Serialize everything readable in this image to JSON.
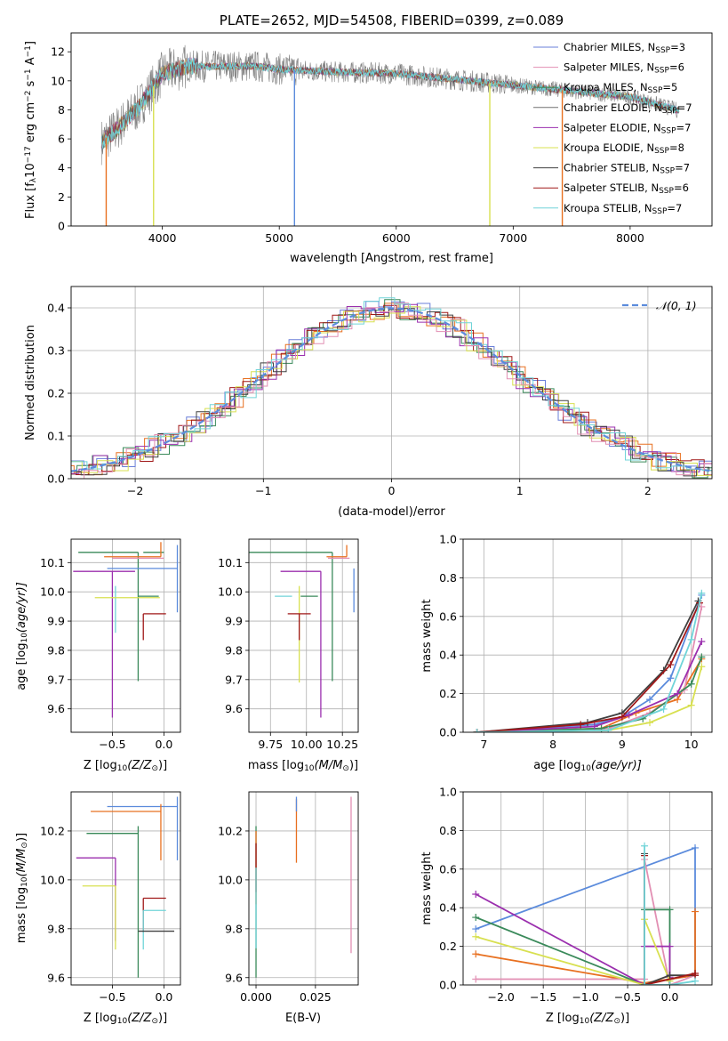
{
  "chart_data": [
    {
      "id": "spectrum",
      "type": "line",
      "title": "PLATE=2652, MJD=54508, FIBERID=0399, z=0.089",
      "xlabel": "wavelength [Angstrom, rest frame]",
      "ylabel": "Flux [f",
      "ylabel_parts": [
        "Flux [f",
        "λ",
        "10",
        "−17",
        " erg cm",
        "−2",
        " s",
        "−1",
        " A",
        "−1",
        "]"
      ],
      "xlim": [
        3220,
        8700
      ],
      "ylim": [
        0,
        13.3
      ],
      "xticks": [
        4000,
        5000,
        6000,
        7000,
        8000
      ],
      "yticks": [
        0,
        2,
        4,
        6,
        8,
        10,
        12
      ],
      "grid": false,
      "legend_position": "right",
      "series": [
        {
          "name": "Chabrier MILES, N",
          "nssp": "3",
          "color": "#6a7fd9"
        },
        {
          "name": "Salpeter MILES, N",
          "nssp": "6",
          "color": "#e28fb3"
        },
        {
          "name": "Kroupa MILES, N",
          "nssp": "5",
          "color": "#3a8a5a"
        },
        {
          "name": "Chabrier ELODIE, N",
          "nssp": "7",
          "color": "#707070"
        },
        {
          "name": "Salpeter ELODIE, N",
          "nssp": "7",
          "color": "#9b2fae"
        },
        {
          "name": "Kroupa ELODIE, N",
          "nssp": "8",
          "color": "#d8e050"
        },
        {
          "name": "Chabrier STELIB, N",
          "nssp": "7",
          "color": "#404040"
        },
        {
          "name": "Salpeter STELIB, N",
          "nssp": "6",
          "color": "#a01818"
        },
        {
          "name": "Kroupa STELIB, N",
          "nssp": "7",
          "color": "#70d4d8"
        }
      ],
      "continuum": {
        "x": [
          3480,
          3600,
          3800,
          4000,
          4200,
          4500,
          4800,
          5000,
          5500,
          6000,
          6500,
          7000,
          7500,
          8000,
          8400
        ],
        "y": [
          5.8,
          6.6,
          8.2,
          10.5,
          11.0,
          11.0,
          11.0,
          10.8,
          10.6,
          10.5,
          10.1,
          9.7,
          9.3,
          8.9,
          8.0
        ]
      }
    },
    {
      "id": "residuals",
      "type": "line",
      "xlabel": "(data-model)/error",
      "ylabel": "Normed distribution",
      "xlim": [
        -2.5,
        2.5
      ],
      "ylim": [
        0,
        0.45
      ],
      "xticks": [
        -2,
        -1,
        0,
        1,
        2
      ],
      "xticklabels": [
        "−2",
        "−1",
        "0",
        "1",
        "2"
      ],
      "yticks": [
        0.0,
        0.1,
        0.2,
        0.3,
        0.4
      ],
      "yticklabels": [
        "0.0",
        "0.1",
        "0.2",
        "0.3",
        "0.4"
      ],
      "grid": true,
      "legend_label": "𝒩(0, 1)",
      "legend_position": "top-right",
      "gaussian_color": "#5b8bdc"
    },
    {
      "id": "age-vs-Z",
      "type": "scatter",
      "xlabel": "Z [log",
      "xlabel_parts": [
        "Z [log",
        "10",
        "(Z/Z",
        "⊙",
        ")]"
      ],
      "ylabel_parts": [
        "age  [log",
        "10",
        "(age/yr)]"
      ],
      "xlim": [
        -0.9,
        0.16
      ],
      "ylim": [
        9.52,
        10.18
      ],
      "xticks": [
        -0.5,
        0.0
      ],
      "xticklabels": [
        "−0.5",
        "0.0"
      ],
      "yticks": [
        9.6,
        9.7,
        9.8,
        9.9,
        10.0,
        10.1
      ],
      "yticklabels": [
        "9.6",
        "9.7",
        "9.8",
        "9.9",
        "10.0",
        "10.1"
      ],
      "grid": true,
      "points": [
        {
          "x": -0.25,
          "y": 10.135,
          "xerr": [
            0.58,
            0.0
          ],
          "yerr": [
            0.44,
            0.0
          ],
          "c": "#3a8a5a"
        },
        {
          "x": -0.2,
          "y": 10.135,
          "xerr": [
            0.0,
            0.2
          ],
          "yerr": [
            0.0,
            0.0
          ],
          "c": "#3a8a5a"
        },
        {
          "x": -0.03,
          "y": 10.12,
          "xerr": [
            0.55,
            0.0
          ],
          "yerr": [
            0.0,
            0.05
          ],
          "c": "#e87020"
        },
        {
          "x": 0.0,
          "y": 10.115,
          "xerr": [
            0.5,
            0.0
          ],
          "yerr": [
            0.0,
            0.0
          ],
          "c": "#e28fb3"
        },
        {
          "x": 0.13,
          "y": 10.08,
          "xerr": [
            0.68,
            0.0
          ],
          "yerr": [
            0.15,
            0.08
          ],
          "c": "#5b8bdc"
        },
        {
          "x": -0.5,
          "y": 10.07,
          "xerr": [
            0.38,
            0.22
          ],
          "yerr": [
            0.5,
            0.0
          ],
          "c": "#9b2fae"
        },
        {
          "x": -0.47,
          "y": 10.02,
          "xerr": [
            0.0,
            0.0
          ],
          "yerr": [
            0.16,
            0.0
          ],
          "c": "#70d4d8"
        },
        {
          "x": -0.05,
          "y": 9.985,
          "xerr": [
            0.2,
            0.0
          ],
          "yerr": [
            0.0,
            0.0
          ],
          "c": "#3a8a5a"
        },
        {
          "x": -0.42,
          "y": 9.98,
          "xerr": [
            0.25,
            0.38
          ],
          "yerr": [
            0.0,
            0.0
          ],
          "c": "#d8e050"
        },
        {
          "x": -0.2,
          "y": 9.925,
          "xerr": [
            0.0,
            0.22
          ],
          "yerr": [
            0.09,
            0.0
          ],
          "c": "#a01818"
        }
      ]
    },
    {
      "id": "age-vs-mass",
      "type": "scatter",
      "xlabel_parts": [
        "mass [log",
        "10",
        "(M/M",
        "⊙",
        ")]"
      ],
      "xlim": [
        9.6,
        10.36
      ],
      "ylim": [
        9.52,
        10.18
      ],
      "xticks": [
        9.75,
        10.0,
        10.25
      ],
      "xticklabels": [
        "9.75",
        "10.00",
        "10.25"
      ],
      "yticks": [
        9.6,
        9.7,
        9.8,
        9.9,
        10.0,
        10.1
      ],
      "yticklabels": [
        "9.6",
        "9.7",
        "9.8",
        "9.9",
        "10.0",
        "10.1"
      ],
      "grid": true,
      "points": [
        {
          "x": 10.18,
          "y": 10.135,
          "xerr": [
            0.58,
            0.0
          ],
          "yerr": [
            0.44,
            0.0
          ],
          "c": "#3a8a5a"
        },
        {
          "x": 10.28,
          "y": 10.12,
          "xerr": [
            0.14,
            0.0
          ],
          "yerr": [
            0.0,
            0.04
          ],
          "c": "#e87020"
        },
        {
          "x": 10.3,
          "y": 10.115,
          "xerr": [
            0.15,
            0.0
          ],
          "yerr": [
            0.0,
            0.0
          ],
          "c": "#e28fb3"
        },
        {
          "x": 10.33,
          "y": 10.08,
          "xerr": [
            0.0,
            0.0
          ],
          "yerr": [
            0.15,
            0.0
          ],
          "c": "#5b8bdc"
        },
        {
          "x": 10.1,
          "y": 10.07,
          "xerr": [
            0.28,
            0.0
          ],
          "yerr": [
            0.5,
            0.0
          ],
          "c": "#9b2fae"
        },
        {
          "x": 9.95,
          "y": 10.02,
          "xerr": [
            0.0,
            0.0
          ],
          "yerr": [
            0.33,
            0.0
          ],
          "c": "#d8e050"
        },
        {
          "x": 9.9,
          "y": 9.985,
          "xerr": [
            0.12,
            0.0
          ],
          "yerr": [
            0.0,
            0.0
          ],
          "c": "#70d4d8"
        },
        {
          "x": 10.08,
          "y": 9.985,
          "xerr": [
            0.12,
            0.0
          ],
          "yerr": [
            0.0,
            0.0
          ],
          "c": "#3a8a5a"
        },
        {
          "x": 9.95,
          "y": 9.925,
          "xerr": [
            0.08,
            0.08
          ],
          "yerr": [
            0.09,
            0.0
          ],
          "c": "#a01818"
        }
      ]
    },
    {
      "id": "weight-vs-age",
      "type": "line",
      "xlabel_parts": [
        "age  [log",
        "10",
        "(age/yr)]"
      ],
      "ylabel": "mass weight",
      "xlim": [
        6.7,
        10.3
      ],
      "ylim": [
        0,
        1.0
      ],
      "xticks": [
        7,
        8,
        9,
        10
      ],
      "yticks": [
        0.0,
        0.2,
        0.4,
        0.6,
        0.8,
        1.0
      ],
      "yticklabels": [
        "0.0",
        "0.2",
        "0.4",
        "0.6",
        "0.8",
        "1.0"
      ],
      "grid": true,
      "series": [
        {
          "color": "#5b8bdc",
          "x": [
            6.9,
            8.6,
            9.0,
            9.4,
            9.7,
            10.15
          ],
          "y": [
            0.0,
            0.04,
            0.08,
            0.17,
            0.28,
            0.71
          ]
        },
        {
          "color": "#e87020",
          "x": [
            6.9,
            8.7,
            9.2,
            9.8,
            10.15
          ],
          "y": [
            0.0,
            0.02,
            0.1,
            0.17,
            0.38
          ]
        },
        {
          "color": "#e28fb3",
          "x": [
            6.9,
            8.8,
            9.4,
            9.9,
            10.15
          ],
          "y": [
            0.0,
            0.02,
            0.1,
            0.22,
            0.65
          ]
        },
        {
          "color": "#3a8a5a",
          "x": [
            6.9,
            8.7,
            9.3,
            10.0,
            10.15
          ],
          "y": [
            0.0,
            0.02,
            0.07,
            0.25,
            0.39
          ]
        },
        {
          "color": "#9b2fae",
          "x": [
            6.9,
            8.6,
            9.1,
            9.8,
            10.15
          ],
          "y": [
            0.0,
            0.03,
            0.09,
            0.2,
            0.47
          ]
        },
        {
          "color": "#d8e050",
          "x": [
            6.9,
            8.8,
            9.4,
            10.0,
            10.15
          ],
          "y": [
            0.0,
            0.01,
            0.05,
            0.14,
            0.34
          ]
        },
        {
          "color": "#404040",
          "x": [
            6.9,
            8.5,
            9.0,
            9.6,
            10.1
          ],
          "y": [
            0.0,
            0.05,
            0.1,
            0.32,
            0.68
          ]
        },
        {
          "color": "#a01818",
          "x": [
            6.9,
            8.4,
            9.0,
            9.7,
            10.12
          ],
          "y": [
            0.0,
            0.04,
            0.08,
            0.35,
            0.67
          ]
        },
        {
          "color": "#70d4d8",
          "x": [
            6.9,
            8.8,
            9.6,
            10.0,
            10.15
          ],
          "y": [
            0.0,
            0.01,
            0.12,
            0.48,
            0.72
          ]
        }
      ]
    },
    {
      "id": "mass-vs-Z",
      "type": "scatter",
      "xlabel_parts": [
        "Z [log",
        "10",
        "(Z/Z",
        "⊙",
        ")]"
      ],
      "ylabel_parts": [
        "mass [log",
        "10",
        "(M/M",
        "⊙",
        ")]"
      ],
      "xlim": [
        -0.9,
        0.16
      ],
      "ylim": [
        9.57,
        10.36
      ],
      "xticks": [
        -0.5,
        0.0
      ],
      "xticklabels": [
        "−0.5",
        "0.0"
      ],
      "yticks": [
        9.6,
        9.8,
        10.0,
        10.2
      ],
      "yticklabels": [
        "9.6",
        "9.8",
        "10.0",
        "10.2"
      ],
      "grid": true,
      "points": [
        {
          "x": 0.13,
          "y": 10.3,
          "xerr": [
            0.68,
            0.0
          ],
          "yerr": [
            0.22,
            0.04
          ],
          "c": "#5b8bdc"
        },
        {
          "x": -0.03,
          "y": 10.28,
          "xerr": [
            0.68,
            0.0
          ],
          "yerr": [
            0.2,
            0.03
          ],
          "c": "#e87020"
        },
        {
          "x": -0.25,
          "y": 10.19,
          "xerr": [
            0.5,
            0.0
          ],
          "yerr": [
            0.59,
            0.03
          ],
          "c": "#3a8a5a"
        },
        {
          "x": -0.47,
          "y": 10.09,
          "xerr": [
            0.38,
            0.0
          ],
          "yerr": [
            0.34,
            0.0
          ],
          "c": "#9b2fae"
        },
        {
          "x": -0.47,
          "y": 9.975,
          "xerr": [
            0.32,
            0.0
          ],
          "yerr": [
            0.26,
            0.0
          ],
          "c": "#d8e050"
        },
        {
          "x": -0.2,
          "y": 9.925,
          "xerr": [
            0.0,
            0.22
          ],
          "yerr": [
            0.14,
            0.0
          ],
          "c": "#a01818"
        },
        {
          "x": -0.2,
          "y": 9.875,
          "xerr": [
            0.0,
            0.22
          ],
          "yerr": [
            0.16,
            0.0
          ],
          "c": "#70d4d8"
        },
        {
          "x": -0.25,
          "y": 9.79,
          "xerr": [
            0.0,
            0.35
          ],
          "yerr": [
            0.0,
            0.0
          ],
          "c": "#404040"
        }
      ]
    },
    {
      "id": "mass-vs-EBV",
      "type": "scatter",
      "xlabel": "E(B-V)",
      "xlim": [
        -0.003,
        0.043
      ],
      "ylim": [
        9.57,
        10.36
      ],
      "xticks": [
        0.0,
        0.025
      ],
      "xticklabels": [
        "0.000",
        "0.025"
      ],
      "yticks": [
        9.6,
        9.8,
        10.0,
        10.2
      ],
      "yticklabels": [
        "9.6",
        "9.8",
        "10.0",
        "10.2"
      ],
      "grid": true,
      "segments": [
        {
          "x": 0.017,
          "y0": 10.07,
          "y1": 10.33,
          "c": "#e87020"
        },
        {
          "x": 0.017,
          "y0": 10.28,
          "y1": 10.34,
          "c": "#5b8bdc"
        },
        {
          "x": 0.04,
          "y0": 9.7,
          "y1": 10.34,
          "c": "#e28fb3"
        },
        {
          "x": 0.0,
          "y0": 9.6,
          "y1": 10.22,
          "c": "#3a8a5a"
        },
        {
          "x": 0.0,
          "y0": 9.9,
          "y1": 10.2,
          "c": "#e87020"
        },
        {
          "x": 0.0,
          "y0": 9.95,
          "y1": 10.15,
          "c": "#a01818"
        },
        {
          "x": 0.0,
          "y0": 9.72,
          "y1": 10.05,
          "c": "#70d4d8"
        }
      ]
    },
    {
      "id": "weight-vs-Z",
      "type": "line",
      "xlabel_parts": [
        "Z [log",
        "10",
        "(Z/Z",
        "⊙",
        ")]"
      ],
      "ylabel": "mass weight",
      "xlim": [
        -2.45,
        0.5
      ],
      "ylim": [
        0,
        1.0
      ],
      "xticks": [
        -2.0,
        -1.5,
        -1.0,
        -0.5,
        0.0
      ],
      "xticklabels": [
        "−2.0",
        "−1.5",
        "−1.0",
        "−0.5",
        "0.0"
      ],
      "yticks": [
        0.0,
        0.2,
        0.4,
        0.6,
        0.8,
        1.0
      ],
      "yticklabels": [
        "0.0",
        "0.2",
        "0.4",
        "0.6",
        "0.8",
        "1.0"
      ],
      "grid": true,
      "series": [
        {
          "color": "#5b8bdc",
          "x": [
            -2.3,
            0.3,
            0.3,
            0.0
          ],
          "y": [
            0.29,
            0.71,
            0.05,
            0.03
          ]
        },
        {
          "color": "#e87020",
          "x": [
            -2.3,
            -0.3,
            0.3,
            0.3
          ],
          "y": [
            0.16,
            0.01,
            0.05,
            0.38
          ]
        },
        {
          "color": "#e28fb3",
          "x": [
            -2.3,
            -0.3,
            -0.3,
            0.0,
            0.3
          ],
          "y": [
            0.03,
            0.03,
            0.65,
            0.0,
            0.05
          ]
        },
        {
          "color": "#3a8a5a",
          "x": [
            -2.3,
            -0.3,
            -0.3,
            0.0,
            0.0
          ],
          "y": [
            0.35,
            0.0,
            0.39,
            0.39,
            0.0
          ]
        },
        {
          "color": "#9b2fae",
          "x": [
            -2.3,
            -0.3,
            -0.3,
            0.0,
            0.0
          ],
          "y": [
            0.47,
            0.0,
            0.2,
            0.2,
            0.04
          ]
        },
        {
          "color": "#d8e050",
          "x": [
            -2.3,
            -0.3,
            -0.3,
            0.0
          ],
          "y": [
            0.25,
            0.0,
            0.34,
            0.02
          ]
        },
        {
          "color": "#404040",
          "x": [
            -0.3,
            -0.3,
            0.0,
            0.3
          ],
          "y": [
            0.68,
            0.0,
            0.05,
            0.05
          ]
        },
        {
          "color": "#a01818",
          "x": [
            -0.3,
            -0.3,
            0.3,
            0.3
          ],
          "y": [
            0.67,
            0.0,
            0.06,
            0.05
          ]
        },
        {
          "color": "#70d4d8",
          "x": [
            -0.3,
            -0.3,
            0.0,
            0.3
          ],
          "y": [
            0.72,
            0.0,
            0.0,
            0.02
          ]
        }
      ]
    }
  ]
}
